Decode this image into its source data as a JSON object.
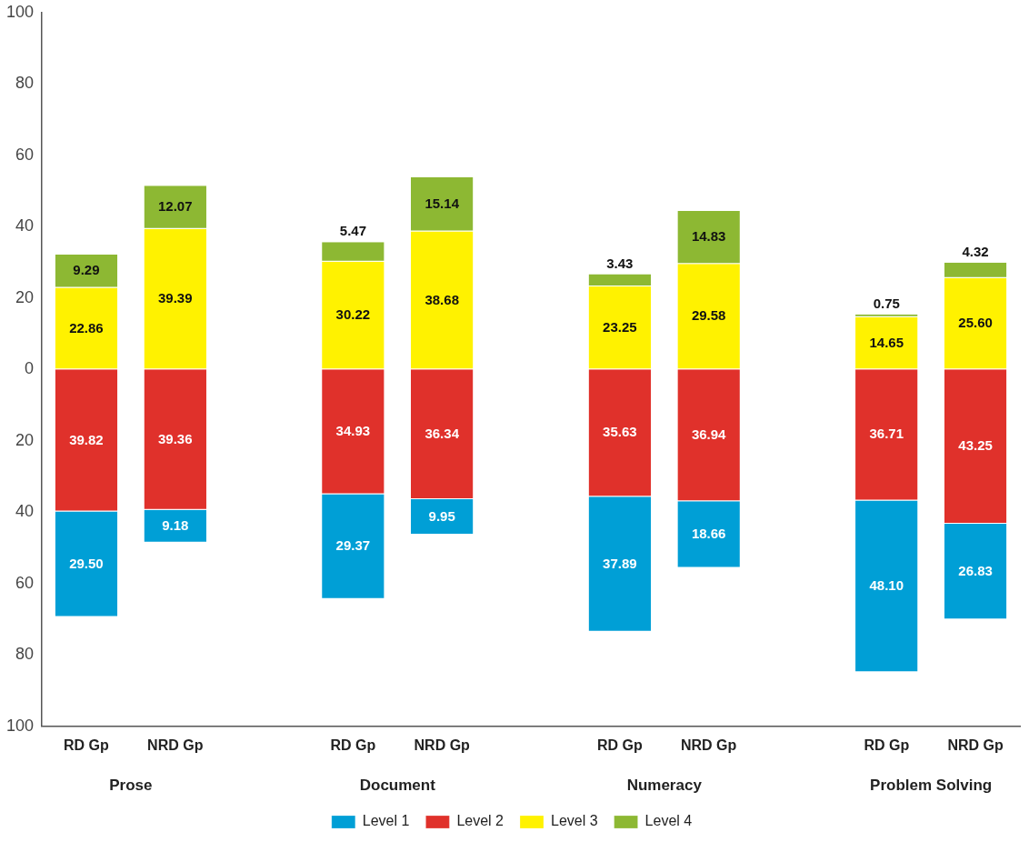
{
  "chart_data": {
    "type": "bar",
    "categories": [
      "RD Gp",
      "NRD Gp",
      null,
      "RD Gp",
      "NRD Gp",
      null,
      "RD Gp",
      "NRD Gp",
      null,
      "RD Gp",
      "NRD Gp"
    ],
    "series": [
      {
        "name": "Level 1",
        "color": "#009fd6",
        "values": [
          29.5,
          9.18,
          null,
          29.37,
          9.95,
          null,
          37.89,
          18.66,
          null,
          48.1,
          26.83
        ],
        "base": [
          -69.32,
          -48.54,
          null,
          -64.3,
          -46.29,
          null,
          -73.52,
          -55.6,
          null,
          -84.81,
          -70.08
        ],
        "value_labels": [
          "29.50",
          "9.18",
          null,
          "29.37",
          "9.95",
          null,
          "37.89",
          "18.66",
          null,
          "48.10",
          "26.83"
        ]
      },
      {
        "name": "Level 2",
        "color": "#e0312b",
        "values": [
          39.82,
          39.36,
          null,
          34.93,
          36.34,
          null,
          35.63,
          36.94,
          null,
          36.71,
          43.25
        ],
        "base": [
          -39.82,
          -39.36,
          null,
          -34.93,
          -36.34,
          null,
          -35.63,
          -36.94,
          null,
          -36.71,
          -43.25
        ],
        "value_labels": [
          "39.82",
          "39.36",
          null,
          "34.93",
          "36.34",
          null,
          "35.63",
          "36.94",
          null,
          "36.71",
          "43.25"
        ]
      },
      {
        "name": "Level 3",
        "color": "#fff200",
        "values": [
          22.86,
          39.39,
          null,
          30.22,
          38.68,
          null,
          23.25,
          29.58,
          null,
          14.65,
          25.6
        ],
        "base": [
          0,
          0,
          null,
          0,
          0,
          null,
          0,
          0,
          null,
          0,
          0
        ],
        "value_labels": [
          "22.86",
          "39.39",
          null,
          "30.22",
          "38.68",
          null,
          "23.25",
          "29.58",
          null,
          "14.65",
          "25.60"
        ]
      },
      {
        "name": "Level 4",
        "color": "#8db833",
        "values": [
          9.29,
          12.07,
          null,
          5.47,
          15.14,
          null,
          3.43,
          14.83,
          null,
          0.75,
          4.32
        ],
        "base": [
          22.86,
          39.39,
          null,
          30.22,
          38.68,
          null,
          23.25,
          29.58,
          null,
          14.65,
          25.6
        ],
        "value_labels": [
          "9.29",
          "12.07",
          null,
          "5.47",
          "15.14",
          null,
          "3.43",
          "14.83",
          null,
          "0.75",
          "4.32"
        ]
      }
    ],
    "annotations": [
      "Prose",
      "Document",
      "Numeracy",
      "Problem Solving"
    ],
    "ylim": [
      -100,
      100
    ],
    "yticks": [
      {
        "value": -100,
        "label": "100"
      },
      {
        "value": -80,
        "label": "80"
      },
      {
        "value": -60,
        "label": "60"
      },
      {
        "value": -40,
        "label": "40"
      },
      {
        "value": -20,
        "label": "20"
      },
      0,
      20,
      40,
      60,
      80,
      100
    ],
    "grid": false,
    "legend": "bottom"
  }
}
